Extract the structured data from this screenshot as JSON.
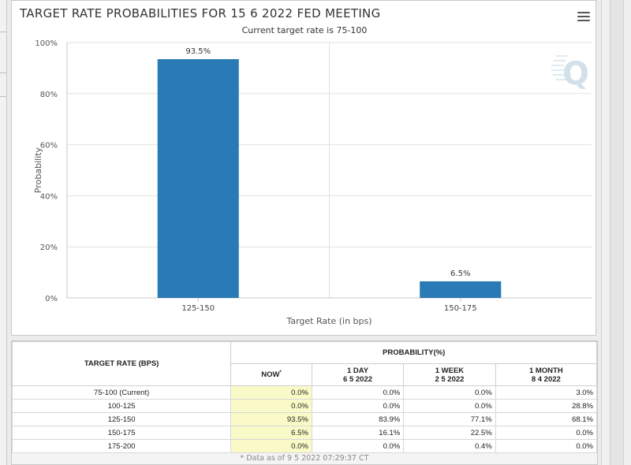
{
  "chart": {
    "title": "TARGET RATE PROBABILITIES FOR 15 6 2022 FED MEETING",
    "subtitle": "Current target rate is 75-100",
    "menu_icon": "hamburger-menu-icon",
    "watermark_icon": "q-logo-icon"
  },
  "chart_data": {
    "type": "bar",
    "categories": [
      "125-150",
      "150-175"
    ],
    "values": [
      93.5,
      6.5
    ],
    "data_labels": [
      "93.5%",
      "6.5%"
    ],
    "xlabel": "Target Rate (in bps)",
    "ylabel": "Probability",
    "ylim": [
      0,
      100
    ],
    "yticks": [
      "0%",
      "20%",
      "40%",
      "60%",
      "80%",
      "100%"
    ],
    "grid": true,
    "bar_color": "#2a7ab5"
  },
  "table": {
    "target_rate_header": "TARGET RATE (BPS)",
    "probability_header": "PROBABILITY(%)",
    "columns": [
      {
        "line1": "NOW",
        "line2": "",
        "star": "*"
      },
      {
        "line1": "1 DAY",
        "line2": "6 5 2022"
      },
      {
        "line1": "1 WEEK",
        "line2": "2 5 2022"
      },
      {
        "line1": "1 MONTH",
        "line2": "8 4 2022"
      }
    ],
    "rows": [
      {
        "rate": "75-100 (Current)",
        "values": [
          "0.0%",
          "0.0%",
          "0.0%",
          "3.0%"
        ]
      },
      {
        "rate": "100-125",
        "values": [
          "0.0%",
          "0.0%",
          "0.0%",
          "28.8%"
        ]
      },
      {
        "rate": "125-150",
        "values": [
          "93.5%",
          "83.9%",
          "77.1%",
          "68.1%"
        ]
      },
      {
        "rate": "150-175",
        "values": [
          "6.5%",
          "16.1%",
          "22.5%",
          "0.0%"
        ]
      },
      {
        "rate": "175-200",
        "values": [
          "0.0%",
          "0.0%",
          "0.4%",
          "0.0%"
        ]
      }
    ],
    "footnote": "* Data as of 9 5 2022 07:29:37 CT"
  }
}
